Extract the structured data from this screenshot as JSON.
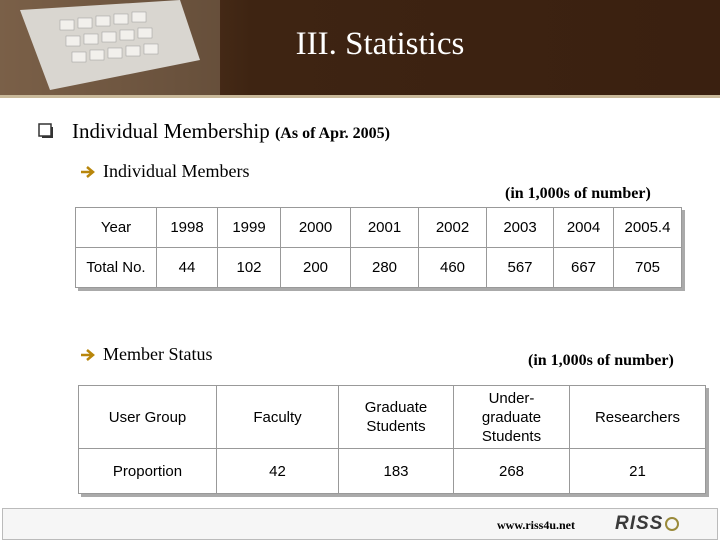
{
  "header": {
    "title": "III. Statistics"
  },
  "section": {
    "title": "Individual Membership",
    "note": "(As of Apr. 2005)"
  },
  "members": {
    "title": "Individual Members",
    "unit": "(in 1,000s of number)",
    "table": {
      "rows": [
        [
          "Year",
          "1998",
          "1999",
          "2000",
          "2001",
          "2002",
          "2003",
          "2004",
          "2005.4"
        ],
        [
          "Total No.",
          "44",
          "102",
          "200",
          "280",
          "460",
          "567",
          "667",
          "705"
        ]
      ]
    }
  },
  "status": {
    "title": "Member Status",
    "unit": "(in 1,000s of number)",
    "table": {
      "rows": [
        [
          "User Group",
          "Faculty",
          "Graduate Students",
          "Under-graduate Students",
          "Researchers"
        ],
        [
          "Proportion",
          "42",
          "183",
          "268",
          "21"
        ]
      ]
    }
  },
  "footer": {
    "url": "www.riss4u.net",
    "logo": "RISS"
  }
}
